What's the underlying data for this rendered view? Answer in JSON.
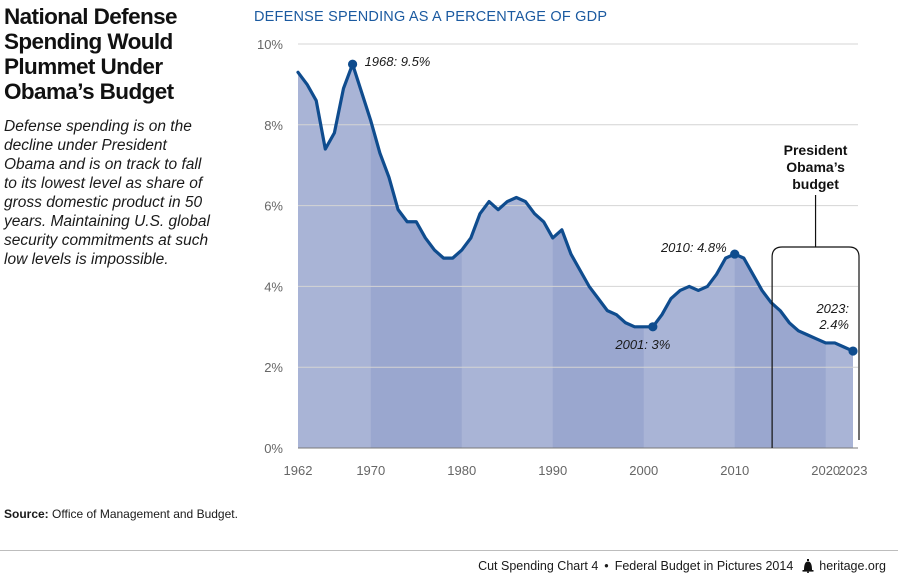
{
  "header": {
    "title": "National Defense Spending Would Plummet Under Obama’s Budget",
    "description": "Defense spending is on the decline under President Obama and is on track to fall to its lowest level as share of gross domestic product in 50 years. Maintaining U.S. global security commitments at such low levels is impossible."
  },
  "colors": {
    "line": "#0f4c8e",
    "area": "#a9b4d6",
    "area_alt": "#9aa7cf",
    "grid": "#d4d4d4",
    "heading": "#1b5aa0",
    "bracket": "#111111"
  },
  "chart_data": {
    "type": "area",
    "title": "DEFENSE SPENDING AS A PERCENTAGE OF GDP",
    "xlabel": "",
    "ylabel": "",
    "xlim": [
      1962,
      2023
    ],
    "ylim": [
      0,
      10
    ],
    "y_ticks": [
      0,
      2,
      4,
      6,
      8,
      10
    ],
    "y_tick_labels": [
      "0%",
      "2%",
      "4%",
      "6%",
      "8%",
      "10%"
    ],
    "x_ticks": [
      1962,
      1970,
      1980,
      1990,
      2000,
      2010,
      2020,
      2023
    ],
    "x_tick_labels": [
      "1962",
      "1970",
      "1980",
      "1990",
      "2000",
      "2010",
      "2020",
      "2023"
    ],
    "grid": true,
    "legend": "none",
    "series": [
      {
        "x": [
          1962,
          1963,
          1964,
          1965,
          1966,
          1967,
          1968,
          1969,
          1970,
          1971,
          1972,
          1973,
          1974,
          1975,
          1976,
          1977,
          1978,
          1979,
          1980,
          1981,
          1982,
          1983,
          1984,
          1985,
          1986,
          1987,
          1988,
          1989,
          1990,
          1991,
          1992,
          1993,
          1994,
          1995,
          1996,
          1997,
          1998,
          1999,
          2000,
          2001,
          2002,
          2003,
          2004,
          2005,
          2006,
          2007,
          2008,
          2009,
          2010,
          2011,
          2012,
          2013,
          2014,
          2015,
          2016,
          2017,
          2018,
          2019,
          2020,
          2021,
          2022,
          2023
        ],
        "values": [
          9.3,
          9.0,
          8.6,
          7.4,
          7.8,
          8.9,
          9.5,
          8.8,
          8.1,
          7.3,
          6.7,
          5.9,
          5.6,
          5.6,
          5.2,
          4.9,
          4.7,
          4.7,
          4.9,
          5.2,
          5.8,
          6.1,
          5.9,
          6.1,
          6.2,
          6.1,
          5.8,
          5.6,
          5.2,
          5.4,
          4.8,
          4.4,
          4.0,
          3.7,
          3.4,
          3.3,
          3.1,
          3.0,
          3.0,
          3.0,
          3.3,
          3.7,
          3.9,
          4.0,
          3.9,
          4.0,
          4.3,
          4.7,
          4.8,
          4.7,
          4.3,
          3.9,
          3.6,
          3.4,
          3.1,
          2.9,
          2.8,
          2.7,
          2.6,
          2.6,
          2.5,
          2.4
        ]
      }
    ],
    "annotations": [
      {
        "x": 1968,
        "y": 9.5,
        "label": "1968: 9.5%"
      },
      {
        "x": 2001,
        "y": 3.0,
        "label": "2001: 3%"
      },
      {
        "x": 2010,
        "y": 4.8,
        "label": "2010: 4.8%"
      },
      {
        "x": 2023,
        "y": 2.4,
        "label": "2023: 2.4%"
      }
    ],
    "bracket": {
      "x_start": 2014,
      "x_end": 2023,
      "label": "President Obama’s budget"
    }
  },
  "source": {
    "label": "Source:",
    "text": "Office of Management and Budget."
  },
  "footer": {
    "chart_label": "Cut Spending Chart 4",
    "publication": "Federal Budget in Pictures 2014",
    "site": "heritage.org"
  }
}
